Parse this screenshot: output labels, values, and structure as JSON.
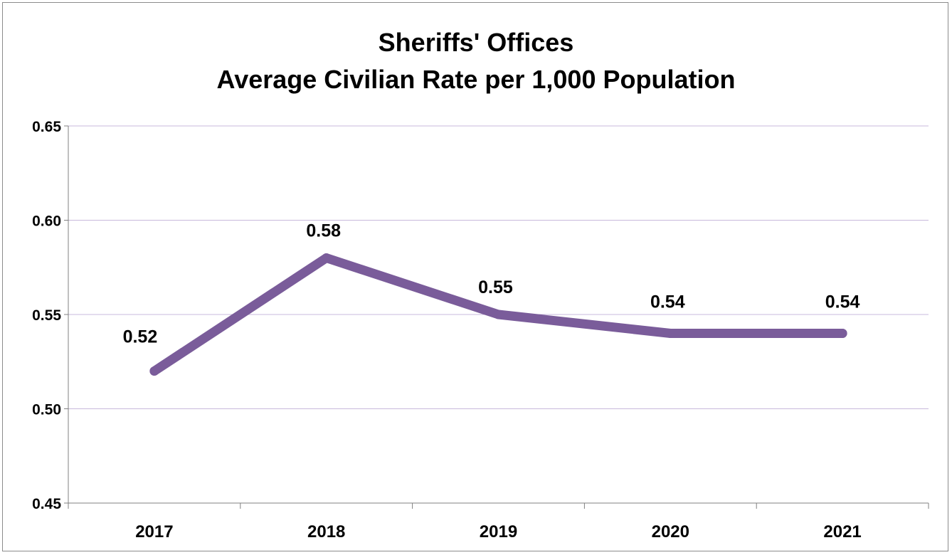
{
  "colors": {
    "series": "#7a5c9a",
    "gridline": "#c8b8dc",
    "axis": "#808080",
    "frame": "#8c8c8c"
  },
  "chart_data": {
    "type": "line",
    "title": "Sheriffs' Offices",
    "subtitle": "Average Civilian Rate per 1,000 Population",
    "xlabel": "",
    "ylabel": "",
    "categories": [
      "2017",
      "2018",
      "2019",
      "2020",
      "2021"
    ],
    "series": [
      {
        "values": [
          0.52,
          0.58,
          0.55,
          0.54,
          0.54
        ]
      }
    ],
    "data_labels": [
      "0.52",
      "0.58",
      "0.55",
      "0.54",
      "0.54"
    ],
    "ylim": [
      0.45,
      0.65
    ],
    "y_ticks": [
      "0.45",
      "0.50",
      "0.55",
      "0.60",
      "0.65"
    ],
    "grid": true,
    "legend": "none"
  }
}
